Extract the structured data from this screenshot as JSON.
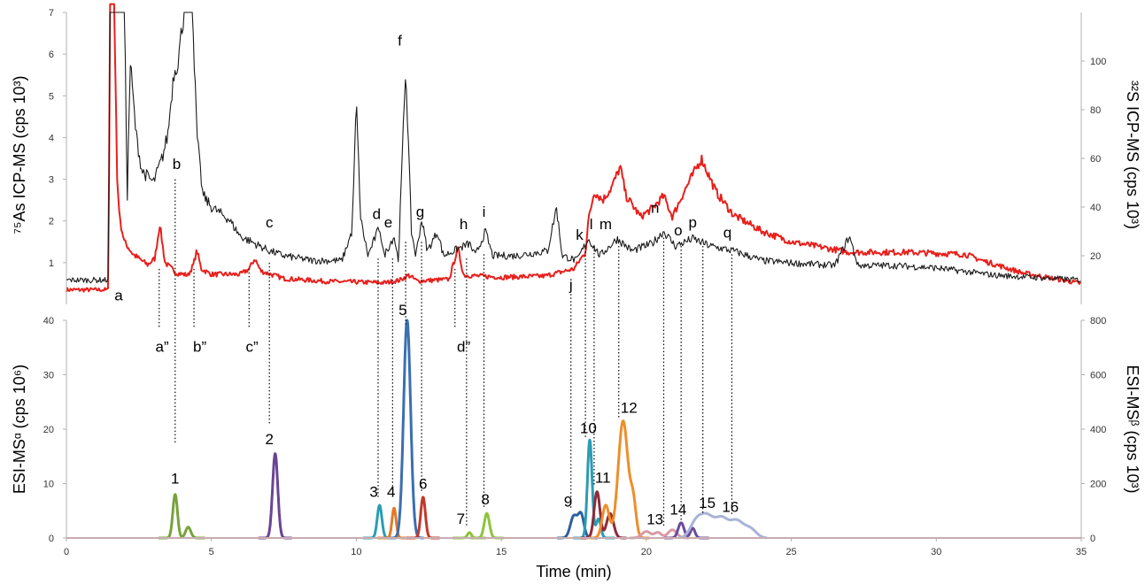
{
  "chart_data": [
    {
      "type": "line",
      "panel": "top",
      "ylabel_left": "⁷⁵As ICP-MS (cps 10³)",
      "ylabel_right": "³²S ICP-MS (cps 10³)",
      "xlim": [
        0,
        35
      ],
      "ylim_left": [
        0,
        7
      ],
      "ylim_right": [
        0,
        120
      ],
      "yticks_left": [
        1,
        2,
        3,
        4,
        5,
        6,
        7
      ],
      "yticks_right": [
        20,
        40,
        60,
        80,
        100
      ],
      "grid": false,
      "series": [
        {
          "color": "#e8201c",
          "axis": "left",
          "baseline": 0.35,
          "noise": 0.05,
          "points": [
            [
              0,
              0.35
            ],
            [
              1.45,
              0.35
            ],
            [
              1.5,
              7.2
            ],
            [
              1.65,
              7.2
            ],
            [
              1.75,
              3.0
            ],
            [
              1.85,
              2.0
            ],
            [
              2.0,
              1.5
            ],
            [
              2.3,
              1.2
            ],
            [
              2.8,
              0.95
            ],
            [
              3.05,
              1.1
            ],
            [
              3.22,
              1.92
            ],
            [
              3.4,
              1.0
            ],
            [
              3.8,
              0.75
            ],
            [
              4.2,
              0.7
            ],
            [
              4.38,
              0.95
            ],
            [
              4.5,
              1.3
            ],
            [
              4.65,
              0.85
            ],
            [
              5.0,
              0.72
            ],
            [
              6.0,
              0.72
            ],
            [
              6.3,
              0.85
            ],
            [
              6.5,
              1.1
            ],
            [
              6.7,
              0.8
            ],
            [
              7.5,
              0.62
            ],
            [
              9.0,
              0.55
            ],
            [
              11.0,
              0.52
            ],
            [
              11.5,
              0.58
            ],
            [
              11.8,
              0.7
            ],
            [
              12.1,
              0.56
            ],
            [
              13.2,
              0.6
            ],
            [
              13.5,
              1.35
            ],
            [
              13.7,
              0.7
            ],
            [
              15.0,
              0.65
            ],
            [
              16.5,
              0.68
            ],
            [
              17.5,
              0.85
            ],
            [
              17.9,
              1.25
            ],
            [
              18.0,
              2.0
            ],
            [
              18.2,
              2.7
            ],
            [
              18.5,
              2.5
            ],
            [
              18.8,
              2.8
            ],
            [
              19.1,
              3.3
            ],
            [
              19.3,
              2.6
            ],
            [
              19.8,
              2.1
            ],
            [
              20.2,
              2.3
            ],
            [
              20.6,
              2.6
            ],
            [
              20.9,
              2.1
            ],
            [
              21.3,
              2.7
            ],
            [
              21.9,
              3.5
            ],
            [
              22.4,
              2.7
            ],
            [
              23.0,
              2.15
            ],
            [
              24.0,
              1.75
            ],
            [
              25.0,
              1.5
            ],
            [
              27.0,
              1.25
            ],
            [
              29.0,
              1.25
            ],
            [
              31.0,
              1.2
            ],
            [
              31.6,
              1.05
            ],
            [
              33.0,
              0.75
            ],
            [
              35.0,
              0.5
            ]
          ]
        },
        {
          "color": "#1a1a1a",
          "axis": "right",
          "baseline": 10,
          "noise": 1.2,
          "points": [
            [
              0,
              10
            ],
            [
              1.45,
              10
            ],
            [
              1.5,
              120
            ],
            [
              2.0,
              120
            ],
            [
              2.1,
              45
            ],
            [
              2.2,
              100
            ],
            [
              2.4,
              70
            ],
            [
              2.6,
              55
            ],
            [
              3.0,
              50
            ],
            [
              3.3,
              60
            ],
            [
              3.5,
              70
            ],
            [
              3.7,
              95
            ],
            [
              3.85,
              100
            ],
            [
              4.05,
              120
            ],
            [
              4.35,
              120
            ],
            [
              4.5,
              70
            ],
            [
              4.7,
              45
            ],
            [
              5.0,
              40
            ],
            [
              5.6,
              35
            ],
            [
              6.0,
              28
            ],
            [
              6.5,
              25
            ],
            [
              7.0,
              22
            ],
            [
              7.5,
              20
            ],
            [
              8.5,
              18
            ],
            [
              9.5,
              18
            ],
            [
              9.85,
              30
            ],
            [
              10.0,
              83
            ],
            [
              10.15,
              35
            ],
            [
              10.4,
              20
            ],
            [
              10.8,
              32
            ],
            [
              10.95,
              20
            ],
            [
              11.3,
              28
            ],
            [
              11.45,
              18
            ],
            [
              11.7,
              98
            ],
            [
              11.9,
              30
            ],
            [
              12.05,
              20
            ],
            [
              12.25,
              35
            ],
            [
              12.45,
              22
            ],
            [
              12.8,
              30
            ],
            [
              13.0,
              20
            ],
            [
              13.9,
              25
            ],
            [
              14.1,
              20
            ],
            [
              14.45,
              30
            ],
            [
              14.7,
              20
            ],
            [
              15.5,
              20
            ],
            [
              16.6,
              22
            ],
            [
              16.9,
              40
            ],
            [
              17.1,
              20
            ],
            [
              17.6,
              18
            ],
            [
              18.0,
              27
            ],
            [
              18.4,
              20
            ],
            [
              19.0,
              27
            ],
            [
              19.5,
              22
            ],
            [
              20.2,
              25
            ],
            [
              20.6,
              30
            ],
            [
              21.0,
              24
            ],
            [
              21.6,
              27
            ],
            [
              22.2,
              24
            ],
            [
              23.0,
              22
            ],
            [
              24.0,
              18
            ],
            [
              25.0,
              17
            ],
            [
              26.5,
              16
            ],
            [
              27.0,
              28
            ],
            [
              27.3,
              16
            ],
            [
              28.5,
              16
            ],
            [
              30.0,
              15
            ],
            [
              32.0,
              12
            ],
            [
              35.0,
              10
            ]
          ]
        }
      ],
      "peak_labels": [
        {
          "text": "a",
          "x": 1.8,
          "y": 0.1
        },
        {
          "text": "b",
          "x": 3.8,
          "y": 3.25
        },
        {
          "text": "c",
          "x": 7.0,
          "y": 1.85
        },
        {
          "text": "d",
          "x": 10.7,
          "y": 2.05
        },
        {
          "text": "e",
          "x": 11.1,
          "y": 1.85
        },
        {
          "text": "f",
          "x": 11.5,
          "y": 6.2
        },
        {
          "text": "g",
          "x": 12.2,
          "y": 2.1
        },
        {
          "text": "h",
          "x": 13.7,
          "y": 1.8
        },
        {
          "text": "i",
          "x": 14.4,
          "y": 2.1
        },
        {
          "text": "j",
          "x": 17.4,
          "y": 0.35
        },
        {
          "text": "k",
          "x": 17.7,
          "y": 1.55
        },
        {
          "text": "l",
          "x": 18.1,
          "y": 1.8
        },
        {
          "text": "m",
          "x": 18.6,
          "y": 1.8
        },
        {
          "text": "n",
          "x": 20.3,
          "y": 2.2
        },
        {
          "text": "o",
          "x": 21.1,
          "y": 1.65
        },
        {
          "text": "p",
          "x": 21.6,
          "y": 1.85
        },
        {
          "text": "q",
          "x": 22.8,
          "y": 1.6
        }
      ]
    },
    {
      "type": "line",
      "panel": "bottom",
      "xlabel": "Time (min)",
      "ylabel_left": "ESI-MSᵅ (cps 10⁶)",
      "ylabel_right": "ESI-MSᵝ (cps 10³)",
      "xlim": [
        0,
        35
      ],
      "xticks": [
        0,
        5,
        10,
        15,
        20,
        25,
        30,
        35
      ],
      "ylim_left": [
        0,
        40
      ],
      "ylim_right": [
        0,
        800
      ],
      "yticks_left": [
        0,
        10,
        20,
        30,
        40
      ],
      "yticks_right": [
        0,
        200,
        400,
        600,
        800
      ],
      "grid": false,
      "series": [
        {
          "label": "1",
          "color": "#77a33a",
          "peaks": [
            [
              3.75,
              8.0,
              0.08
            ],
            [
              4.2,
              2.0,
              0.09
            ]
          ],
          "label_x": 3.75,
          "label_y": 10.0
        },
        {
          "label": "2",
          "color": "#6a4494",
          "peaks": [
            [
              7.2,
              15.5,
              0.09
            ]
          ],
          "label_x": 7.0,
          "label_y": 17.2
        },
        {
          "label": "3",
          "color": "#2b9cb4",
          "peaks": [
            [
              10.8,
              6.0,
              0.08
            ]
          ],
          "label_x": 10.6,
          "label_y": 7.6
        },
        {
          "label": "4",
          "color": "#e07b2a",
          "peaks": [
            [
              11.3,
              5.5,
              0.07
            ]
          ],
          "label_x": 11.2,
          "label_y": 7.6
        },
        {
          "label": "5",
          "color": "#3b6fb0",
          "peaks": [
            [
              11.75,
              40.0,
              0.12
            ]
          ],
          "label_x": 11.6,
          "label_y": 41.0
        },
        {
          "label": "6",
          "color": "#c0392b",
          "peaks": [
            [
              12.3,
              7.5,
              0.08
            ]
          ],
          "label_x": 12.3,
          "label_y": 9.0
        },
        {
          "label": "7",
          "color": "#8dc33c",
          "peaks": [
            [
              13.9,
              1.0,
              0.07
            ]
          ],
          "label_x": 13.6,
          "label_y": 2.6
        },
        {
          "label": "8",
          "color": "#8dc33c",
          "peaks": [
            [
              14.5,
              4.5,
              0.09
            ]
          ],
          "label_x": 14.45,
          "label_y": 6.2
        },
        {
          "label": "9",
          "color": "#2e5f9c",
          "peaks": [
            [
              17.5,
              4.0,
              0.12
            ],
            [
              17.75,
              4.2,
              0.1
            ]
          ],
          "label_x": 17.3,
          "label_y": 5.8
        },
        {
          "label": "10",
          "color": "#2b9cb4",
          "peaks": [
            [
              18.05,
              18.0,
              0.08
            ],
            [
              18.35,
              3.5,
              0.08
            ]
          ],
          "label_x": 18.0,
          "label_y": 19.3
        },
        {
          "label": "11",
          "color": "#8e2b3a",
          "peaks": [
            [
              18.3,
              8.5,
              0.1
            ],
            [
              18.75,
              4.5,
              0.12
            ]
          ],
          "label_x": 18.5,
          "label_y": 10.2
        },
        {
          "label": "12",
          "color": "#ee8e2a",
          "peaks": [
            [
              18.6,
              6.0,
              0.12
            ],
            [
              19.2,
              21.5,
              0.17
            ],
            [
              19.55,
              6.0,
              0.1
            ]
          ],
          "label_x": 19.4,
          "label_y": 23.0
        },
        {
          "label": "13",
          "color": "#d99aa5",
          "peaks": [
            [
              20.0,
              1.2,
              0.15
            ],
            [
              20.4,
              1.0,
              0.12
            ],
            [
              20.9,
              1.5,
              0.15
            ]
          ],
          "label_x": 20.3,
          "label_y": 2.5
        },
        {
          "label": "14",
          "color": "#6a4a9c",
          "peaks": [
            [
              21.2,
              2.8,
              0.1
            ],
            [
              21.6,
              1.8,
              0.08
            ]
          ],
          "label_x": 21.1,
          "label_y": 4.3
        },
        {
          "label": "15",
          "color": "#a7b4d8",
          "peaks": [
            [
              21.7,
              2.5,
              0.2
            ],
            [
              22.1,
              4.0,
              0.25
            ],
            [
              22.6,
              3.0,
              0.2
            ],
            [
              23.1,
              3.2,
              0.25
            ],
            [
              23.6,
              1.5,
              0.2
            ]
          ],
          "label_x": 22.1,
          "label_y": 5.5
        },
        {
          "label": "16",
          "color": "#a7b4d8",
          "peaks": [],
          "label_x": 22.9,
          "label_y": 4.8
        }
      ],
      "peak_labels": [
        {
          "text": "a”",
          "x": 3.3,
          "y": 34.2
        },
        {
          "text": "b”",
          "x": 4.6,
          "y": 34.2
        },
        {
          "text": "c”",
          "x": 6.4,
          "y": 34.2
        },
        {
          "text": "d”",
          "x": 13.7,
          "y": 34.2
        }
      ]
    }
  ],
  "guides": [
    {
      "x": 3.2,
      "from_panel": "top",
      "from_y": 0.85,
      "to_panel": "bottom",
      "to_y": 38.5
    },
    {
      "x": 3.75,
      "from_panel": "top",
      "from_y": 3.0,
      "to_panel": "bottom",
      "to_y": 17.5
    },
    {
      "x": 4.4,
      "from_panel": "top",
      "from_y": 0.85,
      "to_panel": "bottom",
      "to_y": 38.5
    },
    {
      "x": 6.3,
      "from_panel": "top",
      "from_y": 0.85,
      "to_panel": "bottom",
      "to_y": 38.5
    },
    {
      "x": 7.0,
      "from_panel": "top",
      "from_y": 1.0,
      "to_panel": "bottom",
      "to_y": 21.0
    },
    {
      "x": 10.75,
      "from_panel": "top",
      "from_y": 1.1,
      "to_panel": "bottom",
      "to_y": 7.5
    },
    {
      "x": 11.25,
      "from_panel": "top",
      "from_y": 1.1,
      "to_panel": "bottom",
      "to_y": 7.5
    },
    {
      "x": 11.7,
      "from_panel": "top",
      "from_y": 1.5,
      "to_panel": "bottom",
      "to_y": 39.0
    },
    {
      "x": 12.25,
      "from_panel": "top",
      "from_y": 1.5,
      "to_panel": "bottom",
      "to_y": 8.5
    },
    {
      "x": 13.4,
      "from_panel": "top",
      "from_y": 0.85,
      "to_panel": "bottom",
      "to_y": 38.5
    },
    {
      "x": 13.8,
      "from_panel": "top",
      "from_y": 1.1,
      "to_panel": "bottom",
      "to_y": 2.0
    },
    {
      "x": 14.4,
      "from_panel": "top",
      "from_y": 1.2,
      "to_panel": "bottom",
      "to_y": 5.5
    },
    {
      "x": 17.4,
      "from_panel": "top",
      "from_y": 0.25,
      "to_panel": "bottom",
      "to_y": 5.5
    },
    {
      "x": 17.9,
      "from_panel": "top",
      "from_y": 1.35,
      "to_panel": "bottom",
      "to_y": 18.5
    },
    {
      "x": 18.2,
      "from_panel": "top",
      "from_y": 1.4,
      "to_panel": "bottom",
      "to_y": 9.5
    },
    {
      "x": 19.05,
      "from_panel": "top",
      "from_y": 1.4,
      "to_panel": "bottom",
      "to_y": 22.0
    },
    {
      "x": 20.6,
      "from_panel": "top",
      "from_y": 1.6,
      "to_panel": "bottom",
      "to_y": 2.0
    },
    {
      "x": 21.2,
      "from_panel": "top",
      "from_y": 1.4,
      "to_panel": "bottom",
      "to_y": 3.0
    },
    {
      "x": 21.95,
      "from_panel": "top",
      "from_y": 1.4,
      "to_panel": "bottom",
      "to_y": 4.5
    },
    {
      "x": 22.95,
      "from_panel": "top",
      "from_y": 1.2,
      "to_panel": "bottom",
      "to_y": 4.0
    }
  ]
}
